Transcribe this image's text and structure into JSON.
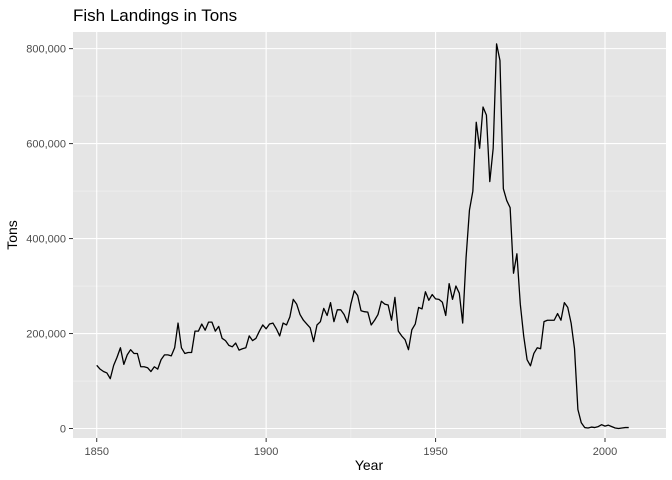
{
  "chart_data": {
    "type": "line",
    "title": "Fish Landings in Tons",
    "xlabel": "Year",
    "ylabel": "Tons",
    "xlim": [
      1843,
      2018
    ],
    "ylim": [
      -20000,
      835000
    ],
    "xticks": [
      1850,
      1900,
      1950,
      2000
    ],
    "xtick_labels": [
      "1850",
      "1900",
      "1950",
      "2000"
    ],
    "yticks": [
      0,
      200000,
      400000,
      600000,
      800000
    ],
    "ytick_labels": [
      "0",
      "200,000",
      "400,000",
      "600,000",
      "800,000"
    ],
    "grid": true,
    "series": [
      {
        "x": [
          1850,
          1851,
          1852,
          1853,
          1854,
          1855,
          1856,
          1857,
          1858,
          1859,
          1860,
          1861,
          1862,
          1863,
          1864,
          1865,
          1866,
          1867,
          1868,
          1869,
          1870,
          1871,
          1872,
          1873,
          1874,
          1875,
          1876,
          1877,
          1878,
          1879,
          1880,
          1881,
          1882,
          1883,
          1884,
          1885,
          1886,
          1887,
          1888,
          1889,
          1890,
          1891,
          1892,
          1893,
          1894,
          1895,
          1896,
          1897,
          1898,
          1899,
          1900,
          1901,
          1902,
          1903,
          1904,
          1905,
          1906,
          1907,
          1908,
          1909,
          1910,
          1911,
          1912,
          1913,
          1914,
          1915,
          1916,
          1917,
          1918,
          1919,
          1920,
          1921,
          1922,
          1923,
          1924,
          1925,
          1926,
          1927,
          1928,
          1929,
          1930,
          1931,
          1932,
          1933,
          1934,
          1935,
          1936,
          1937,
          1938,
          1939,
          1940,
          1941,
          1942,
          1943,
          1944,
          1945,
          1946,
          1947,
          1948,
          1949,
          1950,
          1951,
          1952,
          1953,
          1954,
          1955,
          1956,
          1957,
          1958,
          1959,
          1960,
          1961,
          1962,
          1963,
          1964,
          1965,
          1966,
          1967,
          1968,
          1969,
          1970,
          1971,
          1972,
          1973,
          1974,
          1975,
          1976,
          1977,
          1978,
          1979,
          1980,
          1981,
          1982,
          1983,
          1984,
          1985,
          1986,
          1987,
          1988,
          1989,
          1990,
          1991,
          1992,
          1993,
          1994,
          1995,
          1996,
          1997,
          1998,
          1999,
          2000,
          2001,
          2002,
          2003,
          2004,
          2005,
          2006,
          2007
        ],
        "y": [
          133000,
          125000,
          120000,
          117000,
          105000,
          133000,
          150000,
          170000,
          135000,
          155000,
          166000,
          158000,
          158000,
          130000,
          130000,
          128000,
          120000,
          130000,
          125000,
          145000,
          155000,
          155000,
          153000,
          170000,
          222000,
          170000,
          158000,
          160000,
          160000,
          205000,
          205000,
          220000,
          207000,
          224000,
          224000,
          205000,
          215000,
          190000,
          185000,
          175000,
          172000,
          180000,
          165000,
          168000,
          170000,
          195000,
          185000,
          190000,
          205000,
          218000,
          210000,
          220000,
          222000,
          210000,
          195000,
          222000,
          218000,
          235000,
          272000,
          262000,
          240000,
          228000,
          220000,
          212000,
          183000,
          218000,
          225000,
          253000,
          238000,
          265000,
          225000,
          250000,
          250000,
          240000,
          223000,
          262000,
          290000,
          280000,
          248000,
          246000,
          245000,
          218000,
          228000,
          240000,
          268000,
          262000,
          260000,
          228000,
          276000,
          205000,
          195000,
          187000,
          166000,
          208000,
          220000,
          255000,
          252000,
          288000,
          270000,
          282000,
          273000,
          272000,
          266000,
          238000,
          305000,
          272000,
          300000,
          285000,
          222000,
          360000,
          460000,
          500000,
          645000,
          590000,
          677000,
          660000,
          520000,
          590000,
          810000,
          775000,
          505000,
          480000,
          465000,
          327000,
          368000,
          262000,
          195000,
          145000,
          132000,
          158000,
          170000,
          168000,
          225000,
          228000,
          228000,
          228000,
          242000,
          228000,
          265000,
          255000,
          222000,
          168000,
          40000,
          12000,
          2000,
          1000,
          3000,
          2000,
          4000,
          8000,
          5000,
          7000,
          4000,
          1000,
          0,
          1000,
          2000,
          2000
        ]
      }
    ]
  }
}
